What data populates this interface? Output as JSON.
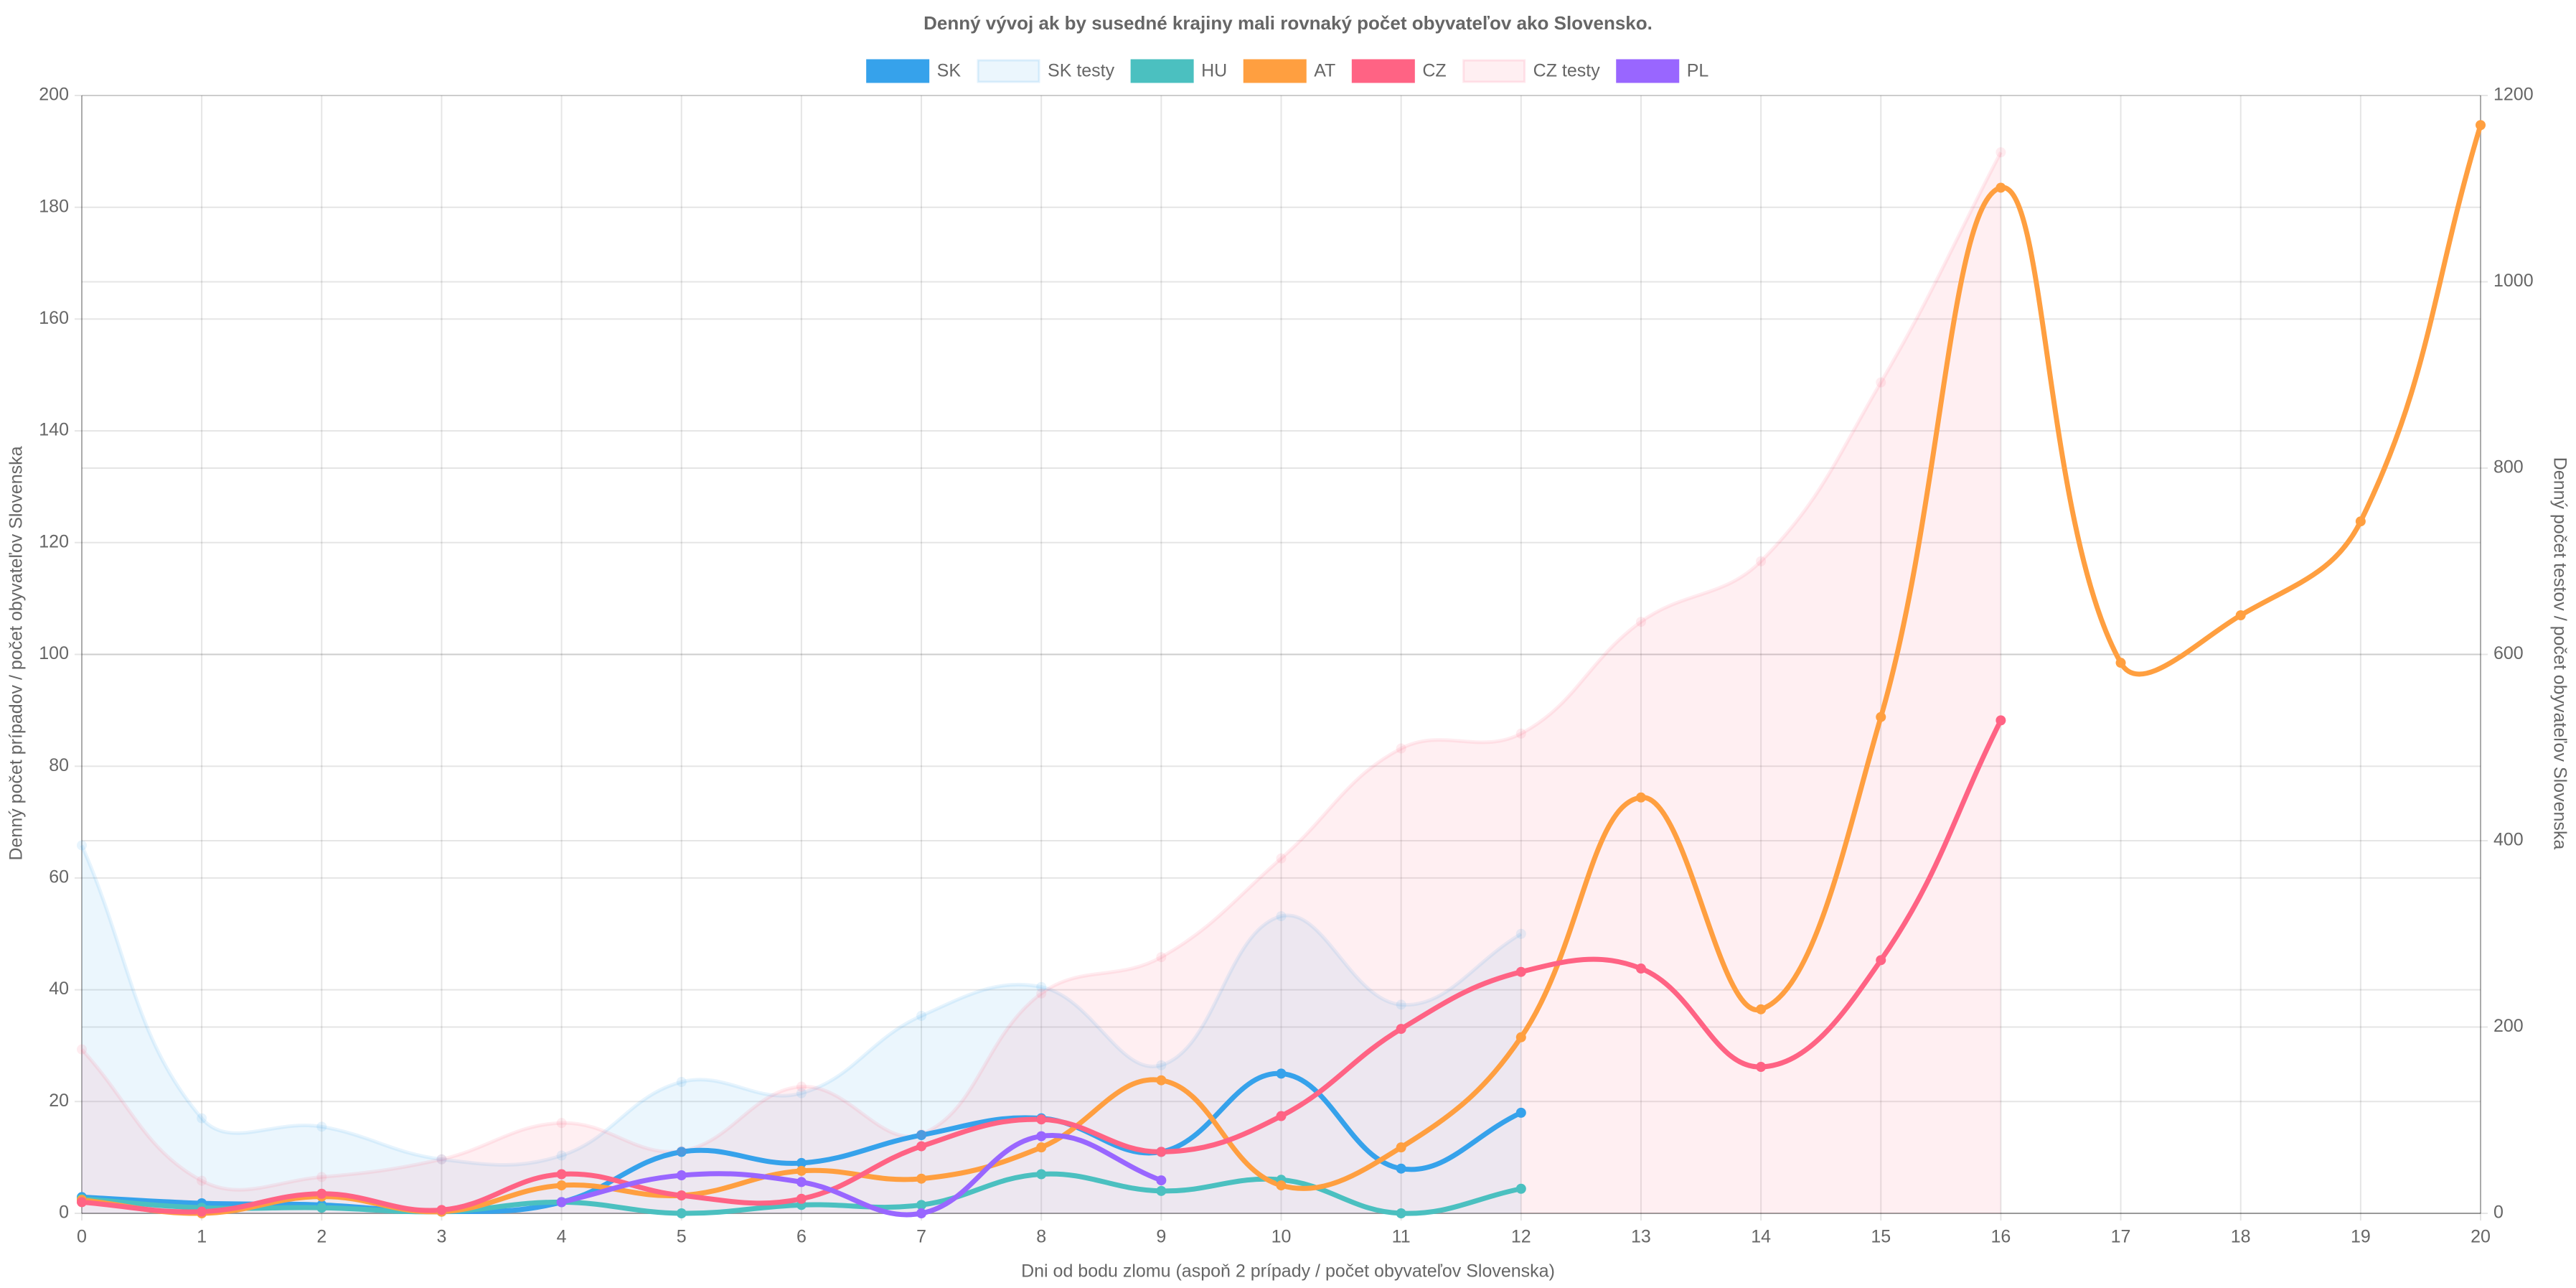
{
  "chart_data": {
    "type": "line",
    "title": "Denný vývoj ak by susedné krajiny mali rovnaký počet obyvateľov ako Slovensko.",
    "xlabel": "Dni od bodu zlomu (aspoň 2 prípady / počet obyvateľov Slovenska)",
    "ylabel": "Denný počet prípadov / počet obyvateľov Slovenska",
    "y2label": "Denný počet testov / počet obyvateľov Slovenska",
    "x": [
      0,
      1,
      2,
      3,
      4,
      5,
      6,
      7,
      8,
      9,
      10,
      11,
      12,
      13,
      14,
      15,
      16,
      17,
      18,
      19,
      20
    ],
    "xlim": [
      0,
      20
    ],
    "xticks": [
      0,
      1,
      2,
      3,
      4,
      5,
      6,
      7,
      8,
      9,
      10,
      11,
      12,
      13,
      14,
      15,
      16,
      17,
      18,
      19,
      20
    ],
    "ylim": [
      0,
      200
    ],
    "yticks": [
      0,
      20,
      40,
      60,
      80,
      100,
      120,
      140,
      160,
      180,
      200
    ],
    "y2lim": [
      0,
      1200
    ],
    "y2ticks": [
      0,
      200,
      400,
      600,
      800,
      1000,
      1200
    ],
    "grid": true,
    "legend": "top",
    "series": [
      {
        "name": "SK",
        "color": "#36a2eb",
        "values": [
          2.9,
          1.8,
          1.5,
          0.3,
          2,
          11,
          9,
          14,
          17,
          11,
          25,
          8,
          18,
          null,
          null,
          null,
          null,
          null,
          null,
          null,
          null
        ]
      },
      {
        "name": "SK testy",
        "color": "#36a2eb",
        "axis": "y2",
        "fill": true,
        "values": [
          395,
          102,
          93,
          58,
          62,
          141,
          129,
          212,
          243,
          159,
          319,
          224,
          300,
          null,
          null,
          null,
          null,
          null,
          null,
          null,
          null
        ]
      },
      {
        "name": "HU",
        "color": "#4bc0c0",
        "values": [
          2.6,
          1,
          1,
          0.3,
          2,
          0,
          1.5,
          1.5,
          7,
          4,
          6,
          0,
          4.4,
          null,
          null,
          null,
          null,
          null,
          null,
          null,
          null
        ]
      },
      {
        "name": "AT",
        "color": "#ff9f40",
        "values": [
          2.4,
          0,
          3,
          0.3,
          5,
          3.2,
          7.6,
          6.2,
          11.8,
          23.8,
          5,
          11.8,
          31.5,
          74.4,
          36.5,
          88.8,
          183.5,
          98.5,
          107,
          123.8,
          194.7
        ]
      },
      {
        "name": "CZ",
        "color": "#ff6384",
        "values": [
          2,
          0.3,
          3.5,
          0.6,
          7,
          3.2,
          2.6,
          12,
          16.8,
          11,
          17.4,
          33,
          43.2,
          43.8,
          26.2,
          45.3,
          88.2,
          null,
          null,
          null,
          null
        ]
      },
      {
        "name": "CZ testy",
        "color": "#ff6384",
        "axis": "y2",
        "fill": true,
        "values": [
          176,
          35,
          39,
          58,
          97,
          67,
          136,
          85,
          236,
          275,
          381,
          499,
          515,
          635,
          700,
          892,
          1139,
          null,
          null,
          null,
          null
        ]
      },
      {
        "name": "PL",
        "color": "#9966ff",
        "values": [
          null,
          null,
          null,
          null,
          2,
          6.8,
          5.6,
          0,
          13.8,
          5.9,
          null,
          null,
          null,
          null,
          null,
          null,
          null,
          null,
          null,
          null,
          null
        ]
      }
    ]
  }
}
